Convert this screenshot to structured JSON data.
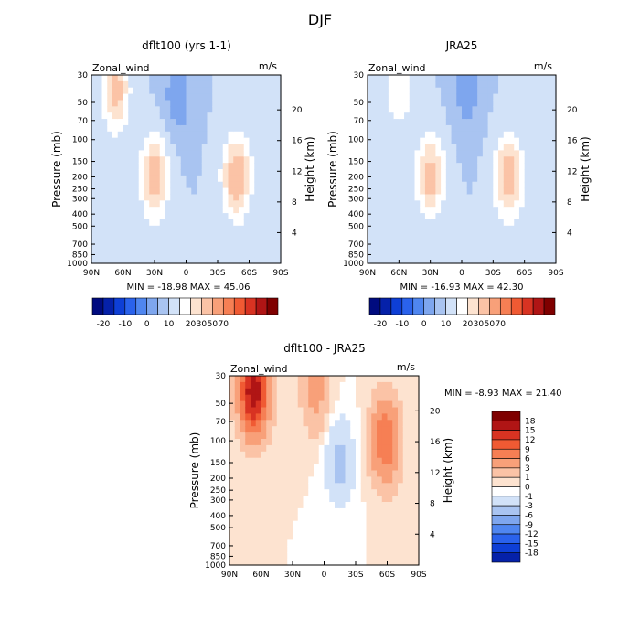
{
  "figure_title": "DJF",
  "chart_data": [
    {
      "type": "heatmap",
      "title": "dflt100 (yrs 1-1)",
      "field_label": "Zonal_wind",
      "units": "m/s",
      "ylabel": "Pressure (mb)",
      "ylabel_right": "Height (km)",
      "x_ticks": [
        "90N",
        "60N",
        "30N",
        "0",
        "30S",
        "60S",
        "90S"
      ],
      "x_values": [
        90,
        60,
        30,
        0,
        -30,
        -60,
        -90
      ],
      "y_ticks": [
        "30",
        "50",
        "70",
        "100",
        "150",
        "200",
        "250",
        "300",
        "400",
        "500",
        "700",
        "850",
        "1000"
      ],
      "y_values": [
        30,
        50,
        70,
        100,
        150,
        200,
        250,
        300,
        400,
        500,
        700,
        850,
        1000
      ],
      "y_ticks_right": [
        "20",
        "16",
        "12",
        "8",
        "4"
      ],
      "y_values_right": [
        20,
        16,
        12,
        8,
        4
      ],
      "stats_text": "MIN =  -18.98   MAX =  45.06",
      "min": -18.98,
      "max": 45.06,
      "colorbar_levels": [
        "-20",
        "-10",
        "0",
        "10",
        "20",
        "30",
        "50",
        "70"
      ],
      "colorbar_colors": [
        "#000b7f",
        "#0521a9",
        "#0e3fd6",
        "#2a62ec",
        "#4f86f0",
        "#7ea6ee",
        "#a9c4f1",
        "#d2e2f8",
        "#ffffff",
        "#fde3d0",
        "#fbc3a6",
        "#f8a079",
        "#f67f54",
        "#f05a33",
        "#d83322",
        "#b01515",
        "#7f0000"
      ],
      "jets": [
        {
          "lat": 67,
          "p": 40,
          "speed": 35
        },
        {
          "lat": 30,
          "p": 200,
          "speed": 38
        },
        {
          "lat": -48,
          "p": 200,
          "speed": 42
        },
        {
          "lat": 8,
          "p": 45,
          "speed": -18
        }
      ]
    },
    {
      "type": "heatmap",
      "title": "JRA25",
      "field_label": "Zonal_wind",
      "units": "m/s",
      "ylabel": "Pressure (mb)",
      "ylabel_right": "Height (km)",
      "x_ticks": [
        "90N",
        "60N",
        "30N",
        "0",
        "30S",
        "60S",
        "90S"
      ],
      "x_values": [
        90,
        60,
        30,
        0,
        -30,
        -60,
        -90
      ],
      "y_ticks": [
        "30",
        "50",
        "70",
        "100",
        "150",
        "200",
        "250",
        "300",
        "400",
        "500",
        "700",
        "850",
        "1000"
      ],
      "y_values": [
        30,
        50,
        70,
        100,
        150,
        200,
        250,
        300,
        400,
        500,
        700,
        850,
        1000
      ],
      "y_ticks_right": [
        "20",
        "16",
        "12",
        "8",
        "4"
      ],
      "y_values_right": [
        20,
        16,
        12,
        8,
        4
      ],
      "stats_text": "MIN =  -16.93   MAX =  42.30",
      "min": -16.93,
      "max": 42.3,
      "colorbar_levels": [
        "-20",
        "-10",
        "0",
        "10",
        "20",
        "30",
        "50",
        "70"
      ],
      "colorbar_colors": [
        "#000b7f",
        "#0521a9",
        "#0e3fd6",
        "#2a62ec",
        "#4f86f0",
        "#7ea6ee",
        "#a9c4f1",
        "#d2e2f8",
        "#ffffff",
        "#fde3d0",
        "#fbc3a6",
        "#f8a079",
        "#f67f54",
        "#f05a33",
        "#d83322",
        "#b01515",
        "#7f0000"
      ],
      "jets": [
        {
          "lat": 60,
          "p": 40,
          "speed": 18
        },
        {
          "lat": 30,
          "p": 200,
          "speed": 36
        },
        {
          "lat": -45,
          "p": 200,
          "speed": 40
        },
        {
          "lat": -5,
          "p": 40,
          "speed": -16
        }
      ]
    },
    {
      "type": "heatmap",
      "title": "dflt100 - JRA25",
      "field_label": "Zonal_wind",
      "units": "m/s",
      "ylabel": "Pressure (mb)",
      "ylabel_right": "Height (km)",
      "x_ticks": [
        "90N",
        "60N",
        "30N",
        "0",
        "30S",
        "60S",
        "90S"
      ],
      "x_values": [
        90,
        60,
        30,
        0,
        -30,
        -60,
        -90
      ],
      "y_ticks": [
        "30",
        "50",
        "70",
        "100",
        "150",
        "200",
        "250",
        "300",
        "400",
        "500",
        "700",
        "850",
        "1000"
      ],
      "y_values": [
        30,
        50,
        70,
        100,
        150,
        200,
        250,
        300,
        400,
        500,
        700,
        850,
        1000
      ],
      "y_ticks_right": [
        "20",
        "16",
        "12",
        "8",
        "4"
      ],
      "y_values_right": [
        20,
        16,
        12,
        8,
        4
      ],
      "stats_text": "MIN =   -8.93   MAX =   21.40",
      "min": -8.93,
      "max": 21.4,
      "colorbar_levels": [
        "18",
        "15",
        "12",
        "9",
        "6",
        "3",
        "1",
        "0",
        "-1",
        "-3",
        "-6",
        "-9",
        "-12",
        "-15",
        "-18"
      ],
      "colorbar_colors": [
        "#7f0000",
        "#b01515",
        "#d83322",
        "#f05a33",
        "#f67f54",
        "#f8a079",
        "#fbc3a6",
        "#fde3d0",
        "#ffffff",
        "#d2e2f8",
        "#a9c4f1",
        "#7ea6ee",
        "#4f86f0",
        "#2a62ec",
        "#0e3fd6",
        "#0521a9"
      ],
      "jets": [
        {
          "lat": 67,
          "p": 40,
          "speed": 18
        },
        {
          "lat": -58,
          "p": 100,
          "speed": 9
        },
        {
          "lat": 8,
          "p": 40,
          "speed": 4
        },
        {
          "lat": -15,
          "p": 150,
          "speed": -4
        }
      ]
    }
  ]
}
